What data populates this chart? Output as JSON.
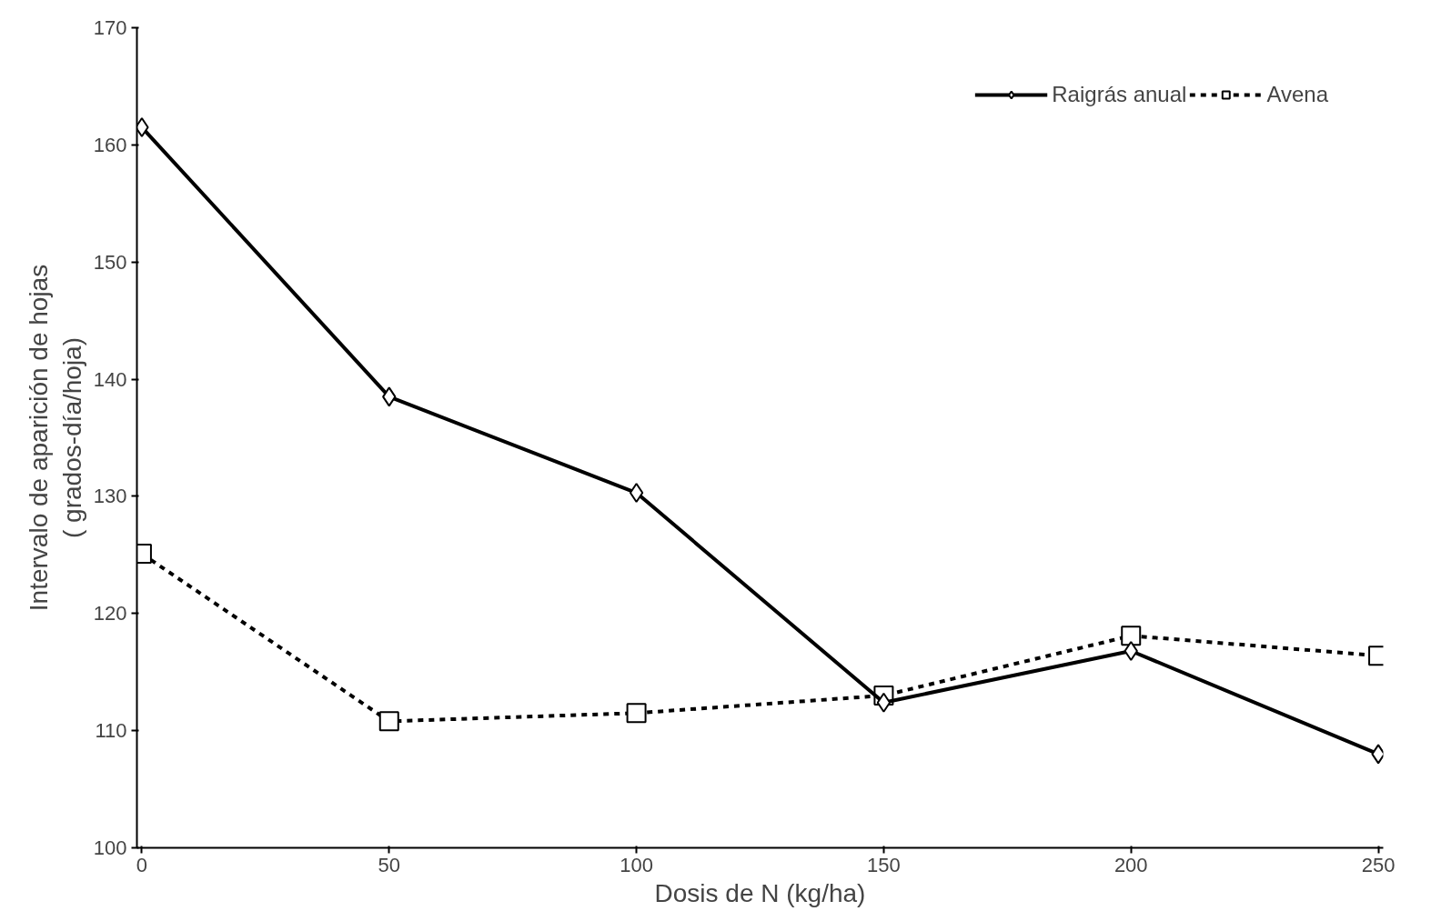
{
  "chart_data": {
    "type": "line",
    "xlabel": "Dosis de N (kg/ha)",
    "ylabel": "Intervalo de aparición de hojas\n( grados-día/hoja)",
    "x": [
      0,
      50,
      100,
      150,
      200,
      250
    ],
    "series": [
      {
        "name": "Raigrás anual",
        "color": "#000000",
        "marker": "diamond",
        "line_style": "solid",
        "values": [
          161.5,
          138.5,
          130.3,
          112.4,
          116.8,
          108.0
        ]
      },
      {
        "name": "Avena",
        "color": "#000000",
        "marker": "square",
        "line_style": "dashed",
        "values": [
          125.1,
          110.8,
          111.5,
          113.0,
          118.1,
          116.4
        ]
      }
    ],
    "xlim": [
      0,
      250
    ],
    "ylim": [
      100,
      170
    ],
    "xticks": [
      0,
      50,
      100,
      150,
      200,
      250
    ],
    "yticks": [
      100,
      110,
      120,
      130,
      140,
      150,
      160,
      170
    ],
    "grid": false,
    "legend": "top right"
  }
}
